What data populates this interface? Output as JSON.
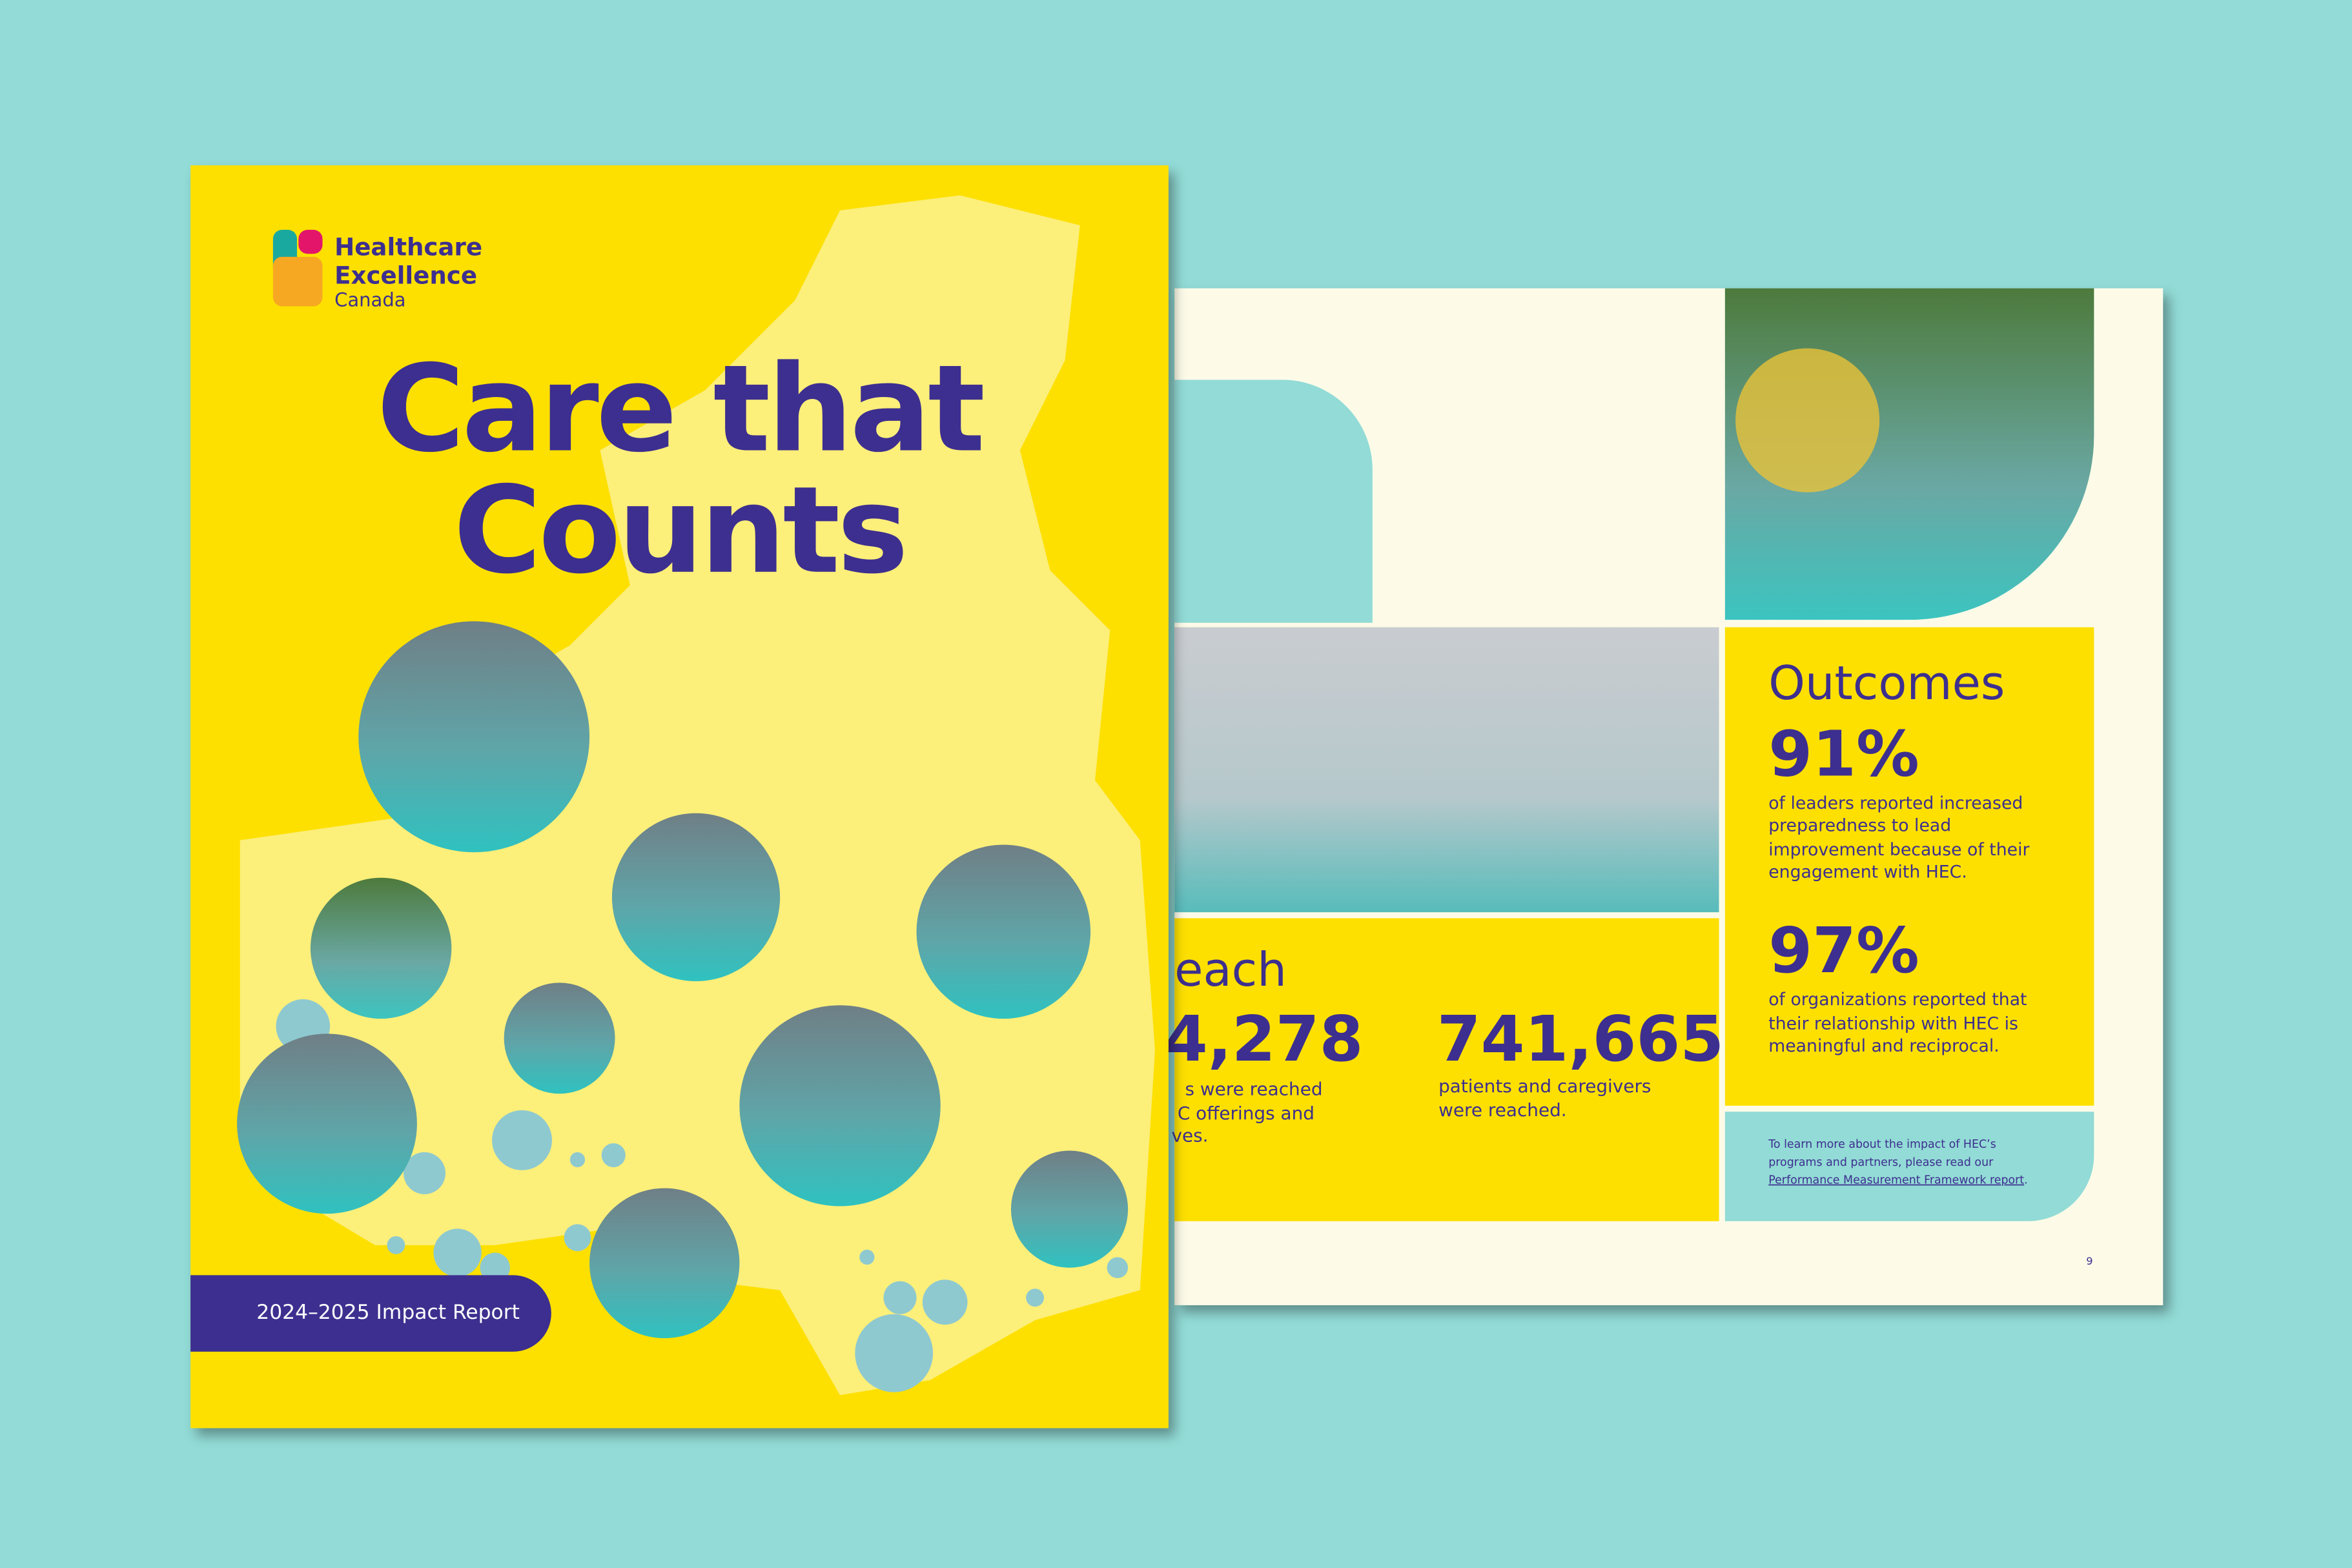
{
  "cover": {
    "logo": [
      "Healthcare",
      "Excellence",
      "Canada"
    ],
    "title": [
      "Care that",
      "Counts"
    ],
    "badge": "2024–2025 Impact Report"
  },
  "spread": {
    "reach": {
      "heading": "each",
      "stat1": "4,278",
      "stat1_text": [
        "s were reached",
        "C offerings and",
        "ves."
      ],
      "stat2": "741,665",
      "stat2_text": [
        "patients and caregivers",
        "were reached."
      ]
    },
    "outcomes": {
      "heading": "Outcomes",
      "items": [
        {
          "stat": "91%",
          "text": [
            "of leaders reported increased",
            "preparedness to lead",
            "improvement because of their",
            "engagement with HEC."
          ]
        },
        {
          "stat": "97%",
          "text": [
            "of organizations reported that",
            "their relationship with HEC is",
            "meaningful and reciprocal."
          ]
        }
      ]
    },
    "note": {
      "lines": [
        "To learn more about the impact of HEC’s",
        "programs and partners, please read our"
      ],
      "link": "Performance Measurement Framework report",
      "end": "."
    },
    "page_number": "9"
  }
}
